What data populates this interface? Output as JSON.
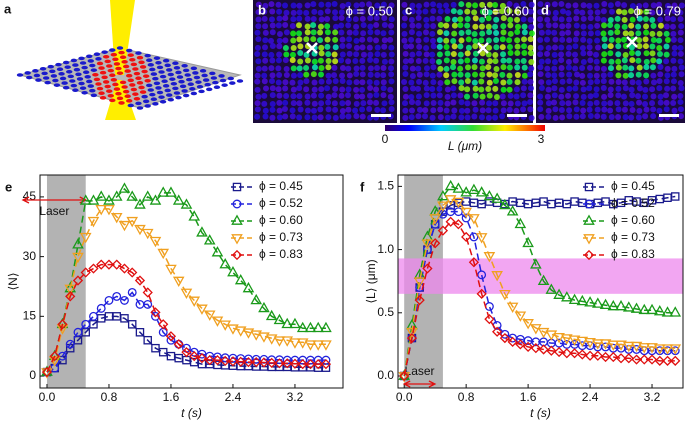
{
  "panels": {
    "a": "a",
    "b": "b",
    "c": "c",
    "d": "d",
    "phi_b": "ϕ = 0.50",
    "phi_c": "ϕ = 0.60",
    "phi_d": "ϕ = 0.79"
  },
  "colorbar": {
    "min": "0",
    "max": "3",
    "label": "L (μm)"
  },
  "chart_data": [
    {
      "type": "line",
      "panel": "e",
      "ylabel": "⟨N⟩",
      "xlabel": "t (s)",
      "annotation": "Laser",
      "shade_x": [
        0,
        0.5
      ],
      "xlim": [
        -0.09,
        3.82
      ],
      "ylim": [
        -3,
        50.5
      ],
      "xticks": [
        {
          "value": 0,
          "label": "0.0"
        },
        0.8,
        1.6,
        2.4,
        3.2
      ],
      "yticks": [
        0,
        15,
        30,
        45
      ],
      "x": [
        0,
        0.1,
        0.2,
        0.3,
        0.4,
        0.5,
        0.6,
        0.7,
        0.8,
        0.9,
        1.0,
        1.1,
        1.2,
        1.3,
        1.4,
        1.5,
        1.6,
        1.7,
        1.8,
        1.9,
        2.0,
        2.1,
        2.2,
        2.3,
        2.4,
        2.5,
        2.6,
        2.7,
        2.8,
        2.9,
        3.0,
        3.1,
        3.2,
        3.3,
        3.4,
        3.5,
        3.6
      ],
      "series": [
        {
          "name": "ϕ = 0.45",
          "color": "#1a1a8c",
          "marker": "square",
          "values": [
            1,
            2,
            4,
            7,
            9,
            11,
            13,
            14.5,
            15,
            15,
            14.5,
            13,
            11,
            9,
            7,
            6,
            5,
            4.5,
            4,
            3.5,
            3,
            3,
            2.8,
            2.7,
            2.6,
            2.5,
            2.5,
            2.4,
            2.4,
            2.3,
            2.3,
            2.3,
            2.2,
            2.2,
            2.2,
            2.1,
            2.1
          ]
        },
        {
          "name": "ϕ = 0.52",
          "color": "#2222dd",
          "marker": "circle",
          "values": [
            1,
            2,
            5,
            8,
            11,
            13,
            15,
            17,
            19,
            20,
            19,
            21,
            18,
            18,
            15,
            11,
            9,
            8,
            7,
            6,
            5.5,
            5,
            4.8,
            4.6,
            4.5,
            4.4,
            4.3,
            4.2,
            4.2,
            4.1,
            4.1,
            4,
            4,
            4,
            4,
            4,
            4
          ]
        },
        {
          "name": "ϕ = 0.60",
          "color": "#1a9a1a",
          "marker": "triangle",
          "values": [
            1,
            5,
            13,
            22,
            33,
            44,
            44,
            45,
            44,
            45,
            47,
            45,
            43,
            45,
            44,
            46,
            46,
            44,
            43,
            40,
            36,
            34,
            31,
            28,
            26,
            24,
            22,
            19,
            17,
            15,
            14,
            13,
            13,
            12,
            12,
            12,
            12
          ]
        },
        {
          "name": "ϕ = 0.73",
          "color": "#f0a020",
          "marker": "triangle-down",
          "values": [
            1,
            4,
            12,
            22,
            30,
            35,
            39,
            42,
            42,
            40,
            38,
            39,
            37,
            36,
            34,
            31,
            27,
            24,
            21,
            19,
            17,
            15.5,
            14,
            13,
            12,
            11.5,
            11,
            10.5,
            10,
            9.5,
            9,
            9,
            8.5,
            8.5,
            8,
            8,
            8
          ]
        },
        {
          "name": "ϕ = 0.83",
          "color": "#e01010",
          "marker": "diamond",
          "values": [
            1,
            5,
            13,
            20,
            24,
            26,
            27,
            28,
            28,
            28,
            27,
            26,
            24,
            21,
            16,
            13,
            10,
            8,
            6,
            5,
            4.5,
            4,
            4,
            3.8,
            3.7,
            3.6,
            3.5,
            3.5,
            3.4,
            3.3,
            3.2,
            3.2,
            3.1,
            3,
            3,
            3,
            3
          ]
        }
      ]
    },
    {
      "type": "line",
      "panel": "f",
      "ylabel": "⟨L⟩ (μm)",
      "xlabel": "t (s)",
      "annotation": "Laser",
      "shade_x": [
        0,
        0.5
      ],
      "band_y": [
        0.65,
        0.93
      ],
      "xlim": [
        -0.08,
        3.6
      ],
      "ylim": [
        -0.095,
        1.59
      ],
      "xticks": [
        {
          "value": 0,
          "label": "0.0"
        },
        0.8,
        1.6,
        2.4,
        3.2
      ],
      "yticks": [
        {
          "value": 0,
          "label": "0.0"
        },
        0.5,
        {
          "value": 1,
          "label": "1.0"
        },
        1.5
      ],
      "x": [
        0,
        0.1,
        0.2,
        0.3,
        0.4,
        0.5,
        0.6,
        0.7,
        0.8,
        0.9,
        1.0,
        1.1,
        1.2,
        1.3,
        1.4,
        1.5,
        1.6,
        1.7,
        1.8,
        1.9,
        2.0,
        2.1,
        2.2,
        2.3,
        2.4,
        2.5,
        2.6,
        2.7,
        2.8,
        2.9,
        3.0,
        3.1,
        3.2,
        3.3,
        3.4,
        3.5
      ],
      "series": [
        {
          "name": "ϕ = 0.45",
          "color": "#1a1a8c",
          "marker": "square",
          "values": [
            0,
            0.3,
            0.7,
            1.0,
            1.2,
            1.3,
            1.35,
            1.37,
            1.38,
            1.37,
            1.36,
            1.38,
            1.37,
            1.36,
            1.38,
            1.37,
            1.36,
            1.37,
            1.38,
            1.36,
            1.37,
            1.36,
            1.38,
            1.37,
            1.36,
            1.37,
            1.38,
            1.36,
            1.37,
            1.39,
            1.38,
            1.37,
            1.39,
            1.4,
            1.41,
            1.42
          ]
        },
        {
          "name": "ϕ = 0.52",
          "color": "#2222dd",
          "marker": "circle",
          "values": [
            0,
            0.3,
            0.7,
            1.0,
            1.2,
            1.28,
            1.3,
            1.3,
            1.25,
            1.1,
            0.8,
            0.55,
            0.4,
            0.33,
            0.3,
            0.29,
            0.28,
            0.27,
            0.27,
            0.26,
            0.26,
            0.25,
            0.25,
            0.24,
            0.24,
            0.23,
            0.23,
            0.22,
            0.22,
            0.21,
            0.21,
            0.2,
            0.2,
            0.2,
            0.2,
            0.2
          ]
        },
        {
          "name": "ϕ = 0.60",
          "color": "#1a9a1a",
          "marker": "triangle",
          "values": [
            0,
            0.4,
            0.8,
            1.1,
            1.3,
            1.42,
            1.5,
            1.48,
            1.45,
            1.47,
            1.45,
            1.42,
            1.4,
            1.35,
            1.3,
            1.2,
            1.05,
            0.88,
            0.75,
            0.68,
            0.64,
            0.62,
            0.6,
            0.59,
            0.58,
            0.57,
            0.56,
            0.55,
            0.55,
            0.54,
            0.53,
            0.52,
            0.52,
            0.51,
            0.5,
            0.5
          ]
        },
        {
          "name": "ϕ = 0.73",
          "color": "#f0a020",
          "marker": "triangle-down",
          "values": [
            0,
            0.35,
            0.75,
            1.05,
            1.25,
            1.35,
            1.4,
            1.38,
            1.3,
            1.25,
            1.1,
            0.95,
            0.8,
            0.65,
            0.55,
            0.48,
            0.42,
            0.38,
            0.35,
            0.33,
            0.31,
            0.3,
            0.29,
            0.28,
            0.27,
            0.26,
            0.26,
            0.25,
            0.25,
            0.24,
            0.24,
            0.23,
            0.23,
            0.22,
            0.22,
            0.22
          ]
        },
        {
          "name": "ϕ = 0.83",
          "color": "#e01010",
          "marker": "diamond",
          "values": [
            0,
            0.3,
            0.6,
            0.85,
            1.05,
            1.15,
            1.22,
            1.2,
            1.1,
            0.9,
            0.65,
            0.45,
            0.35,
            0.3,
            0.27,
            0.25,
            0.23,
            0.22,
            0.21,
            0.2,
            0.19,
            0.18,
            0.18,
            0.17,
            0.16,
            0.16,
            0.15,
            0.15,
            0.14,
            0.14,
            0.13,
            0.13,
            0.13,
            0.12,
            0.12,
            0.12
          ]
        }
      ]
    }
  ]
}
